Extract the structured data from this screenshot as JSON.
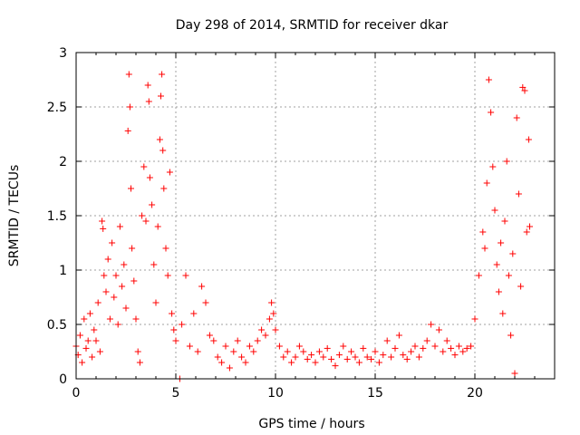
{
  "chart_data": {
    "type": "scatter",
    "title": "Day 298 of 2014, SRMTID for receiver dkar",
    "xlabel": "GPS time / hours",
    "ylabel": "SRMTID / TECUs",
    "xlim": [
      0,
      24
    ],
    "ylim": [
      0,
      3
    ],
    "xticks": [
      0,
      5,
      10,
      15,
      20
    ],
    "xtick_labels": [
      "0",
      "5",
      "10",
      "15",
      "20"
    ],
    "yticks": [
      0,
      0.5,
      1,
      1.5,
      2,
      2.5,
      3
    ],
    "ytick_labels": [
      "0",
      "0.5",
      "1",
      "1.5",
      "2",
      "2.5",
      "3"
    ],
    "grid": true,
    "marker": "+",
    "color": "#ff0000",
    "series": [
      {
        "name": "SRMTID",
        "points": [
          [
            0.0,
            0.3
          ],
          [
            0.1,
            0.22
          ],
          [
            0.2,
            0.4
          ],
          [
            0.3,
            0.15
          ],
          [
            0.4,
            0.55
          ],
          [
            0.5,
            0.28
          ],
          [
            0.6,
            0.35
          ],
          [
            0.7,
            0.6
          ],
          [
            0.8,
            0.2
          ],
          [
            0.9,
            0.45
          ],
          [
            1.0,
            0.35
          ],
          [
            1.1,
            0.7
          ],
          [
            1.2,
            0.25
          ],
          [
            1.3,
            1.45
          ],
          [
            1.35,
            1.38
          ],
          [
            1.4,
            0.95
          ],
          [
            1.5,
            0.8
          ],
          [
            1.6,
            1.1
          ],
          [
            1.7,
            0.55
          ],
          [
            1.8,
            1.25
          ],
          [
            1.9,
            0.75
          ],
          [
            2.0,
            0.95
          ],
          [
            2.1,
            0.5
          ],
          [
            2.2,
            1.4
          ],
          [
            2.3,
            0.85
          ],
          [
            2.4,
            1.05
          ],
          [
            2.5,
            0.65
          ],
          [
            2.6,
            2.28
          ],
          [
            2.65,
            2.8
          ],
          [
            2.7,
            2.5
          ],
          [
            2.75,
            1.75
          ],
          [
            2.8,
            1.2
          ],
          [
            2.9,
            0.9
          ],
          [
            3.0,
            0.55
          ],
          [
            3.1,
            0.25
          ],
          [
            3.2,
            0.15
          ],
          [
            3.3,
            1.5
          ],
          [
            3.4,
            1.95
          ],
          [
            3.5,
            1.45
          ],
          [
            3.6,
            2.7
          ],
          [
            3.65,
            2.55
          ],
          [
            3.7,
            1.85
          ],
          [
            3.8,
            1.6
          ],
          [
            3.9,
            1.05
          ],
          [
            4.0,
            0.7
          ],
          [
            4.1,
            1.4
          ],
          [
            4.2,
            2.2
          ],
          [
            4.25,
            2.6
          ],
          [
            4.3,
            2.8
          ],
          [
            4.35,
            2.1
          ],
          [
            4.4,
            1.75
          ],
          [
            4.5,
            1.2
          ],
          [
            4.6,
            0.95
          ],
          [
            4.7,
            1.9
          ],
          [
            4.8,
            0.6
          ],
          [
            4.9,
            0.45
          ],
          [
            5.0,
            0.35
          ],
          [
            5.2,
            0.0
          ],
          [
            5.3,
            0.5
          ],
          [
            5.5,
            0.95
          ],
          [
            5.7,
            0.3
          ],
          [
            5.9,
            0.6
          ],
          [
            6.1,
            0.25
          ],
          [
            6.3,
            0.85
          ],
          [
            6.5,
            0.7
          ],
          [
            6.7,
            0.4
          ],
          [
            6.9,
            0.35
          ],
          [
            7.1,
            0.2
          ],
          [
            7.3,
            0.15
          ],
          [
            7.5,
            0.3
          ],
          [
            7.7,
            0.1
          ],
          [
            7.9,
            0.25
          ],
          [
            8.1,
            0.35
          ],
          [
            8.3,
            0.2
          ],
          [
            8.5,
            0.15
          ],
          [
            8.7,
            0.3
          ],
          [
            8.9,
            0.25
          ],
          [
            9.1,
            0.35
          ],
          [
            9.3,
            0.45
          ],
          [
            9.5,
            0.4
          ],
          [
            9.7,
            0.55
          ],
          [
            9.8,
            0.7
          ],
          [
            9.9,
            0.6
          ],
          [
            10.0,
            0.45
          ],
          [
            10.2,
            0.3
          ],
          [
            10.4,
            0.2
          ],
          [
            10.6,
            0.25
          ],
          [
            10.8,
            0.15
          ],
          [
            11.0,
            0.2
          ],
          [
            11.2,
            0.3
          ],
          [
            11.4,
            0.25
          ],
          [
            11.6,
            0.18
          ],
          [
            11.8,
            0.22
          ],
          [
            12.0,
            0.15
          ],
          [
            12.2,
            0.25
          ],
          [
            12.4,
            0.2
          ],
          [
            12.6,
            0.28
          ],
          [
            12.8,
            0.18
          ],
          [
            13.0,
            0.12
          ],
          [
            13.2,
            0.22
          ],
          [
            13.4,
            0.3
          ],
          [
            13.6,
            0.18
          ],
          [
            13.8,
            0.25
          ],
          [
            14.0,
            0.2
          ],
          [
            14.2,
            0.15
          ],
          [
            14.4,
            0.28
          ],
          [
            14.6,
            0.2
          ],
          [
            14.8,
            0.18
          ],
          [
            15.0,
            0.25
          ],
          [
            15.2,
            0.15
          ],
          [
            15.4,
            0.22
          ],
          [
            15.6,
            0.35
          ],
          [
            15.8,
            0.2
          ],
          [
            16.0,
            0.28
          ],
          [
            16.2,
            0.4
          ],
          [
            16.4,
            0.22
          ],
          [
            16.6,
            0.18
          ],
          [
            16.8,
            0.25
          ],
          [
            17.0,
            0.3
          ],
          [
            17.2,
            0.2
          ],
          [
            17.4,
            0.28
          ],
          [
            17.6,
            0.35
          ],
          [
            17.8,
            0.5
          ],
          [
            18.0,
            0.3
          ],
          [
            18.2,
            0.45
          ],
          [
            18.4,
            0.25
          ],
          [
            18.6,
            0.35
          ],
          [
            18.8,
            0.28
          ],
          [
            19.0,
            0.22
          ],
          [
            19.2,
            0.3
          ],
          [
            19.4,
            0.25
          ],
          [
            19.6,
            0.28
          ],
          [
            19.8,
            0.3
          ],
          [
            20.0,
            0.55
          ],
          [
            20.2,
            0.95
          ],
          [
            20.4,
            1.35
          ],
          [
            20.5,
            1.2
          ],
          [
            20.6,
            1.8
          ],
          [
            20.7,
            2.75
          ],
          [
            20.8,
            2.45
          ],
          [
            20.9,
            1.95
          ],
          [
            21.0,
            1.55
          ],
          [
            21.1,
            1.05
          ],
          [
            21.2,
            0.8
          ],
          [
            21.3,
            1.25
          ],
          [
            21.4,
            0.6
          ],
          [
            21.5,
            1.45
          ],
          [
            21.6,
            2.0
          ],
          [
            21.7,
            0.95
          ],
          [
            21.8,
            0.4
          ],
          [
            21.9,
            1.15
          ],
          [
            22.0,
            0.05
          ],
          [
            22.1,
            2.4
          ],
          [
            22.2,
            1.7
          ],
          [
            22.3,
            0.85
          ],
          [
            22.4,
            2.68
          ],
          [
            22.5,
            2.65
          ],
          [
            22.6,
            1.35
          ],
          [
            22.7,
            2.2
          ],
          [
            22.75,
            1.4
          ]
        ]
      }
    ]
  }
}
